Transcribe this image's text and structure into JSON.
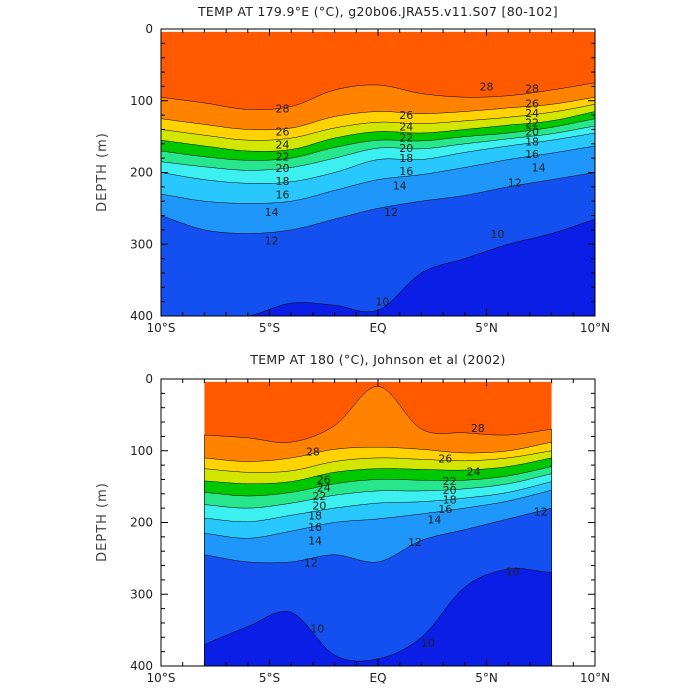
{
  "chart_data": [
    {
      "type": "heatmap",
      "title": "TEMP AT 179.9°E (°C), g20b06.JRA55.v11.S07 [80-102]",
      "ylabel": "DEPTH (m)",
      "xlim": [
        -10,
        10
      ],
      "ylim": [
        400,
        0
      ],
      "x_ticks": [
        -10,
        -5,
        0,
        5,
        10
      ],
      "x_tick_labels": [
        "10°S",
        "5°S",
        "EQ",
        "5°N",
        "10°N"
      ],
      "y_ticks": [
        0,
        100,
        200,
        300,
        400
      ],
      "y_tick_labels": [
        "0",
        "100",
        "200",
        "300",
        "400"
      ],
      "data_xrange": [
        -10,
        10
      ],
      "x": [
        -10,
        -8,
        -6,
        -4,
        -2,
        0,
        2,
        4,
        6,
        8,
        10
      ],
      "isotherm_depth": {
        "levels": [
          28,
          26,
          24,
          22,
          20,
          18,
          16,
          14,
          12,
          10
        ],
        "depths_m": [
          [
            95,
            103,
            112,
            108,
            85,
            78,
            90,
            95,
            93,
            85,
            75
          ],
          [
            125,
            133,
            140,
            138,
            122,
            115,
            118,
            115,
            110,
            105,
            95
          ],
          [
            140,
            148,
            155,
            152,
            138,
            130,
            132,
            128,
            123,
            116,
            105
          ],
          [
            155,
            163,
            170,
            168,
            152,
            143,
            145,
            140,
            134,
            128,
            115
          ],
          [
            170,
            178,
            183,
            180,
            165,
            155,
            156,
            150,
            145,
            137,
            125
          ],
          [
            185,
            192,
            197,
            193,
            180,
            166,
            167,
            160,
            153,
            146,
            135
          ],
          [
            200,
            210,
            215,
            213,
            200,
            182,
            182,
            172,
            163,
            155,
            145
          ],
          [
            230,
            240,
            243,
            240,
            225,
            210,
            203,
            193,
            182,
            173,
            163
          ],
          [
            260,
            280,
            285,
            280,
            265,
            250,
            240,
            232,
            220,
            210,
            200
          ],
          [
            400,
            400,
            400,
            382,
            385,
            392,
            340,
            320,
            300,
            285,
            265
          ]
        ]
      },
      "contour_labels": [
        {
          "text": "28",
          "x": 5.0,
          "y": 80
        },
        {
          "text": "28",
          "x": -4.4,
          "y": 111
        },
        {
          "text": "28",
          "x": 7.1,
          "y": 83
        },
        {
          "text": "26",
          "x": -4.4,
          "y": 143
        },
        {
          "text": "24",
          "x": -4.4,
          "y": 161
        },
        {
          "text": "22",
          "x": -4.4,
          "y": 178
        },
        {
          "text": "20",
          "x": -4.4,
          "y": 194
        },
        {
          "text": "18",
          "x": -4.4,
          "y": 212
        },
        {
          "text": "16",
          "x": -4.4,
          "y": 231
        },
        {
          "text": "14",
          "x": -4.9,
          "y": 255
        },
        {
          "text": "12",
          "x": -4.9,
          "y": 295
        },
        {
          "text": "26",
          "x": 1.3,
          "y": 120
        },
        {
          "text": "24",
          "x": 1.3,
          "y": 136
        },
        {
          "text": "22",
          "x": 1.3,
          "y": 151
        },
        {
          "text": "20",
          "x": 1.3,
          "y": 166
        },
        {
          "text": "18",
          "x": 1.3,
          "y": 180
        },
        {
          "text": "16",
          "x": 1.3,
          "y": 198
        },
        {
          "text": "14",
          "x": 1.0,
          "y": 218
        },
        {
          "text": "12",
          "x": 0.6,
          "y": 255
        },
        {
          "text": "26",
          "x": 7.1,
          "y": 104
        },
        {
          "text": "24",
          "x": 7.1,
          "y": 117
        },
        {
          "text": "22",
          "x": 7.1,
          "y": 130
        },
        {
          "text": "20",
          "x": 7.1,
          "y": 143
        },
        {
          "text": "18",
          "x": 7.1,
          "y": 157
        },
        {
          "text": "16",
          "x": 7.1,
          "y": 174
        },
        {
          "text": "14",
          "x": 7.4,
          "y": 193
        },
        {
          "text": "12",
          "x": 6.3,
          "y": 214
        },
        {
          "text": "10",
          "x": 5.5,
          "y": 286
        },
        {
          "text": "10",
          "x": 0.2,
          "y": 380
        }
      ]
    },
    {
      "type": "heatmap",
      "title": "TEMP AT 180 (°C), Johnson et al (2002)",
      "ylabel": "DEPTH (m)",
      "xlim": [
        -10,
        10
      ],
      "ylim": [
        400,
        0
      ],
      "x_ticks": [
        -10,
        -5,
        0,
        5,
        10
      ],
      "x_tick_labels": [
        "10°S",
        "5°S",
        "EQ",
        "5°N",
        "10°N"
      ],
      "y_ticks": [
        0,
        100,
        200,
        300,
        400
      ],
      "y_tick_labels": [
        "0",
        "100",
        "200",
        "300",
        "400"
      ],
      "data_xrange": [
        -8,
        8
      ],
      "x": [
        -8,
        -6,
        -4,
        -2,
        0,
        2,
        4,
        6,
        8
      ],
      "isotherm_depth": {
        "levels": [
          28,
          26,
          24,
          22,
          20,
          18,
          16,
          14,
          12,
          10
        ],
        "depths_m": [
          [
            78,
            82,
            88,
            65,
            10,
            70,
            75,
            78,
            70
          ],
          [
            110,
            115,
            110,
            98,
            95,
            98,
            103,
            100,
            88
          ],
          [
            125,
            130,
            128,
            115,
            110,
            112,
            114,
            110,
            100
          ],
          [
            142,
            146,
            143,
            130,
            125,
            126,
            127,
            122,
            110
          ],
          [
            158,
            163,
            158,
            146,
            140,
            141,
            141,
            135,
            122
          ],
          [
            175,
            180,
            173,
            162,
            156,
            156,
            153,
            146,
            132
          ],
          [
            194,
            199,
            190,
            180,
            173,
            171,
            166,
            158,
            143
          ],
          [
            215,
            222,
            212,
            200,
            195,
            188,
            180,
            170,
            155
          ],
          [
            245,
            255,
            255,
            245,
            255,
            225,
            210,
            195,
            180
          ],
          [
            370,
            345,
            325,
            385,
            390,
            360,
            290,
            265,
            270
          ]
        ]
      },
      "contour_labels": [
        {
          "text": "28",
          "x": 4.6,
          "y": 68
        },
        {
          "text": "28",
          "x": -3.0,
          "y": 101
        },
        {
          "text": "26",
          "x": 3.1,
          "y": 111
        },
        {
          "text": "24",
          "x": 4.4,
          "y": 129
        },
        {
          "text": "22",
          "x": 3.3,
          "y": 142
        },
        {
          "text": "20",
          "x": 3.3,
          "y": 155
        },
        {
          "text": "18",
          "x": 3.3,
          "y": 168
        },
        {
          "text": "16",
          "x": 3.1,
          "y": 181
        },
        {
          "text": "14",
          "x": 2.6,
          "y": 196
        },
        {
          "text": "12",
          "x": 1.7,
          "y": 227
        },
        {
          "text": "12",
          "x": 7.5,
          "y": 185
        },
        {
          "text": "12",
          "x": -3.1,
          "y": 256
        },
        {
          "text": "14",
          "x": -2.9,
          "y": 225
        },
        {
          "text": "16",
          "x": -2.9,
          "y": 206
        },
        {
          "text": "18",
          "x": -2.9,
          "y": 190
        },
        {
          "text": "20",
          "x": -2.7,
          "y": 176
        },
        {
          "text": "22",
          "x": -2.7,
          "y": 163
        },
        {
          "text": "24",
          "x": -2.5,
          "y": 151
        },
        {
          "text": "26",
          "x": -2.5,
          "y": 140
        },
        {
          "text": "10",
          "x": 6.2,
          "y": 268
        },
        {
          "text": "10",
          "x": -2.8,
          "y": 348
        },
        {
          "text": "10",
          "x": 2.3,
          "y": 368
        }
      ]
    }
  ],
  "color_scale": {
    "levels": [
      8,
      10,
      12,
      13,
      14,
      15,
      16,
      17,
      18,
      19,
      20,
      21,
      22,
      23,
      24,
      25,
      26,
      27,
      28,
      29,
      30,
      31
    ],
    "colors": [
      "#0a1ee6",
      "#1450f0",
      "#1e78f5",
      "#1e96fa",
      "#1eb0ff",
      "#28c8ff",
      "#32dcff",
      "#3cf0f0",
      "#32f0c8",
      "#28e68c",
      "#14dc3c",
      "#00c800",
      "#8cdc00",
      "#d2e600",
      "#ffff00",
      "#ffd200",
      "#ffaa00",
      "#ff8200",
      "#ff5a00",
      "#ff2800",
      "#e61e1e",
      "#cc0000"
    ]
  }
}
